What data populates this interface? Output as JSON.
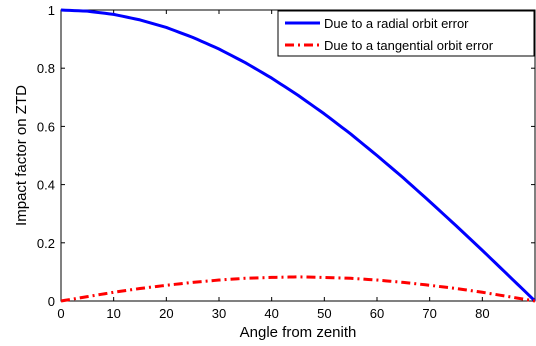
{
  "chart_data": {
    "type": "line",
    "title": "",
    "xlabel": "Angle from zenith",
    "ylabel": "Impact factor on ZTD",
    "xlim": [
      0,
      90
    ],
    "ylim": [
      0,
      1
    ],
    "xticks": [
      "0",
      "10",
      "20",
      "30",
      "40",
      "50",
      "60",
      "70",
      "80"
    ],
    "yticks": [
      "0",
      "0.2",
      "0.4",
      "0.6",
      "0.8",
      "1"
    ],
    "grid": false,
    "legend_position": "top-right",
    "x": [
      0,
      5,
      10,
      15,
      20,
      25,
      30,
      35,
      40,
      45,
      50,
      55,
      60,
      65,
      70,
      75,
      80,
      85,
      90
    ],
    "series": [
      {
        "name": "Due to a radial orbit error",
        "color": "#0000ff",
        "style": "solid",
        "values": [
          1.0,
          0.996,
          0.985,
          0.966,
          0.94,
          0.906,
          0.866,
          0.819,
          0.766,
          0.707,
          0.643,
          0.574,
          0.5,
          0.423,
          0.342,
          0.259,
          0.174,
          0.087,
          0.0
        ]
      },
      {
        "name": "Due to a tangential orbit error",
        "color": "#ff0000",
        "style": "dash-dot",
        "values": [
          0.0,
          0.015,
          0.03,
          0.043,
          0.054,
          0.064,
          0.072,
          0.078,
          0.081,
          0.083,
          0.081,
          0.078,
          0.072,
          0.064,
          0.054,
          0.043,
          0.03,
          0.015,
          0.0
        ]
      }
    ]
  }
}
